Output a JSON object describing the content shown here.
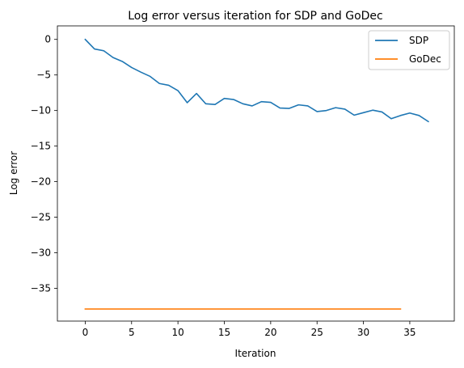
{
  "chart_data": {
    "type": "line",
    "title": "Log error versus iteration for SDP and GoDec",
    "xlabel": "Iteration",
    "ylabel": "Log error",
    "xlim": [
      -3.0,
      39.8
    ],
    "ylim": [
      -39.6,
      1.9
    ],
    "xticks": [
      0,
      5,
      10,
      15,
      20,
      25,
      30,
      35
    ],
    "yticks": [
      0,
      -5,
      -10,
      -15,
      -20,
      -25,
      -30,
      -35
    ],
    "grid": false,
    "legend_position": "top-right",
    "series": [
      {
        "name": "SDP",
        "color": "#1f77b4",
        "x": [
          0,
          1,
          2,
          3,
          4,
          5,
          6,
          7,
          8,
          9,
          10,
          11,
          12,
          13,
          14,
          15,
          16,
          17,
          18,
          19,
          20,
          21,
          22,
          23,
          24,
          25,
          26,
          27,
          28,
          29,
          30,
          31,
          32,
          33,
          34,
          35,
          36,
          37
        ],
        "y": [
          0.0,
          -1.35,
          -1.6,
          -2.55,
          -3.1,
          -3.95,
          -4.6,
          -5.2,
          -6.2,
          -6.45,
          -7.2,
          -8.9,
          -7.6,
          -9.05,
          -9.15,
          -8.3,
          -8.45,
          -9.05,
          -9.35,
          -8.75,
          -8.85,
          -9.65,
          -9.7,
          -9.2,
          -9.35,
          -10.15,
          -10.0,
          -9.6,
          -9.8,
          -10.65,
          -10.3,
          -9.95,
          -10.2,
          -11.15,
          -10.7,
          -10.35,
          -10.7,
          -11.55
        ]
      },
      {
        "name": "GoDec",
        "color": "#ff7f0e",
        "x": [
          0,
          1,
          2,
          3,
          4,
          5,
          6,
          7,
          8,
          9,
          10,
          11,
          12,
          13,
          14,
          15,
          16,
          17,
          18,
          19,
          20,
          21,
          22,
          23,
          24,
          25,
          26,
          27,
          28,
          29,
          30,
          31,
          32,
          33,
          34
        ],
        "y": [
          -37.9,
          -37.9,
          -37.9,
          -37.9,
          -37.9,
          -37.9,
          -37.9,
          -37.9,
          -37.9,
          -37.9,
          -37.9,
          -37.9,
          -37.9,
          -37.9,
          -37.9,
          -37.9,
          -37.9,
          -37.9,
          -37.9,
          -37.9,
          -37.9,
          -37.9,
          -37.9,
          -37.9,
          -37.9,
          -37.9,
          -37.9,
          -37.9,
          -37.9,
          -37.9,
          -37.9,
          -37.9,
          -37.9,
          -37.9,
          -37.9
        ]
      }
    ]
  }
}
